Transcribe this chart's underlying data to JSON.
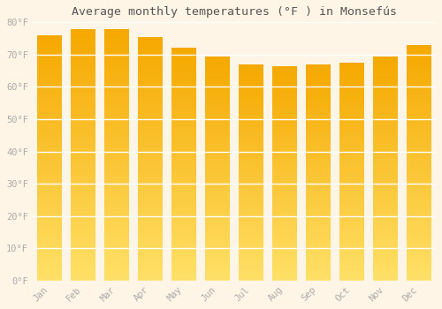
{
  "title": "Average monthly temperatures (°F ) in Monsefús",
  "months": [
    "Jan",
    "Feb",
    "Mar",
    "Apr",
    "May",
    "Jun",
    "Jul",
    "Aug",
    "Sep",
    "Oct",
    "Nov",
    "Dec"
  ],
  "values": [
    76,
    78,
    78,
    75.5,
    72,
    69.5,
    67,
    66.5,
    67,
    67.5,
    69.5,
    73
  ],
  "bar_color_top": "#F5A800",
  "bar_color_bottom": "#FFE066",
  "background_color": "#FFF5E6",
  "plot_bg_color": "#FFF5E6",
  "grid_color": "#FFFFFF",
  "tick_label_color": "#AAAAAA",
  "title_color": "#555555",
  "ylim": [
    0,
    80
  ],
  "yticks": [
    0,
    10,
    20,
    30,
    40,
    50,
    60,
    70,
    80
  ],
  "ytick_labels": [
    "0°F",
    "10°F",
    "20°F",
    "30°F",
    "40°F",
    "50°F",
    "60°F",
    "70°F",
    "80°F"
  ],
  "figsize": [
    5.0,
    3.5
  ],
  "dpi": 100
}
